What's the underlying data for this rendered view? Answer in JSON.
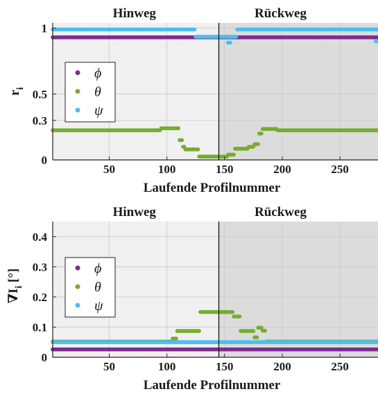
{
  "figure": {
    "panels": [
      {
        "title_left": "Hinweg",
        "title_right": "Rückweg",
        "xlabel": "Laufende Profilnummer",
        "ylabel": "r",
        "ylabel_sub": "i",
        "ylabel_suffix": ""
      },
      {
        "title_left": "Hinweg",
        "title_right": "Rückweg",
        "xlabel": "Laufende Profilnummer",
        "ylabel": "∇I",
        "ylabel_sub": "i",
        "ylabel_suffix": " [°]"
      }
    ],
    "legend": [
      "ϕ",
      "θ",
      "ψ"
    ],
    "colors": {
      "phi": "#7b2d8e",
      "theta": "#77ac30",
      "psi": "#4dbeee",
      "hinweg_bg": "#f0f0f0",
      "rueckweg_bg": "#dcdcdc"
    }
  },
  "chart_data": [
    {
      "type": "scatter",
      "xlabel": "Laufende Profilnummer",
      "ylabel": "r_i",
      "xlim": [
        1,
        283
      ],
      "ylim": [
        0,
        1.04
      ],
      "xticks": [
        50,
        100,
        150,
        200,
        250
      ],
      "yticks": [
        0,
        0.3,
        0.5,
        1
      ],
      "ytick_labels": [
        "0",
        "0.3",
        "0.5",
        "1"
      ],
      "divider_x": 145,
      "grid": true,
      "legend_position": "left",
      "series": [
        {
          "name": "ϕ",
          "segments": [
            {
              "x": [
                1,
                143
              ],
              "y": 0.93
            },
            {
              "x": [
                144,
                283
              ],
              "y": 0.93
            }
          ]
        },
        {
          "name": "θ",
          "segments": [
            {
              "x": [
                1,
                94
              ],
              "y": 0.225
            },
            {
              "x": [
                95,
                110
              ],
              "y": 0.24
            },
            {
              "x": [
                111,
                113
              ],
              "y": 0.15
            },
            {
              "x": [
                114,
                115
              ],
              "y": 0.1
            },
            {
              "x": [
                116,
                127
              ],
              "y": 0.08
            },
            {
              "x": [
                128,
                152
              ],
              "y": 0.025
            },
            {
              "x": [
                153,
                158
              ],
              "y": 0.04
            },
            {
              "x": [
                159,
                170
              ],
              "y": 0.085
            },
            {
              "x": [
                171,
                175
              ],
              "y": 0.1
            },
            {
              "x": [
                176,
                179
              ],
              "y": 0.12
            },
            {
              "x": [
                180,
                182
              ],
              "y": 0.2
            },
            {
              "x": [
                183,
                195
              ],
              "y": 0.235
            },
            {
              "x": [
                196,
                283
              ],
              "y": 0.225
            }
          ]
        },
        {
          "name": "ψ",
          "segments": [
            {
              "x": [
                1,
                124
              ],
              "y": 0.99
            },
            {
              "x": [
                125,
                160
              ],
              "y": 0.935
            },
            {
              "x": [
                153,
                155
              ],
              "y": 0.89
            },
            {
              "x": [
                161,
                283
              ],
              "y": 0.99
            },
            {
              "x": [
                281,
                283
              ],
              "y": 0.9
            }
          ]
        }
      ]
    },
    {
      "type": "scatter",
      "xlabel": "Laufende Profilnummer",
      "ylabel": "∇I_i [°]",
      "xlim": [
        1,
        283
      ],
      "ylim": [
        0,
        0.45
      ],
      "xticks": [
        50,
        100,
        150,
        200,
        250
      ],
      "yticks": [
        0,
        0.1,
        0.2,
        0.3,
        0.4
      ],
      "ytick_labels": [
        "0",
        "0.1",
        "0.2",
        "0.3",
        "0.4"
      ],
      "divider_x": 145,
      "grid": true,
      "legend_position": "left",
      "series": [
        {
          "name": "ϕ",
          "segments": [
            {
              "x": [
                1,
                283
              ],
              "y": 0.026
            }
          ]
        },
        {
          "name": "θ",
          "segments": [
            {
              "x": [
                1,
                104
              ],
              "y": 0.052
            },
            {
              "x": [
                105,
                108
              ],
              "y": 0.062
            },
            {
              "x": [
                109,
                128
              ],
              "y": 0.087
            },
            {
              "x": [
                129,
                157
              ],
              "y": 0.15
            },
            {
              "x": [
                158,
                163
              ],
              "y": 0.135
            },
            {
              "x": [
                164,
                175
              ],
              "y": 0.087
            },
            {
              "x": [
                176,
                178
              ],
              "y": 0.066
            },
            {
              "x": [
                179,
                182
              ],
              "y": 0.098
            },
            {
              "x": [
                183,
                185
              ],
              "y": 0.088
            },
            {
              "x": [
                186,
                283
              ],
              "y": 0.052
            }
          ]
        },
        {
          "name": "ψ",
          "segments": [
            {
              "x": [
                1,
                283
              ],
              "y": 0.05
            }
          ]
        }
      ]
    }
  ]
}
